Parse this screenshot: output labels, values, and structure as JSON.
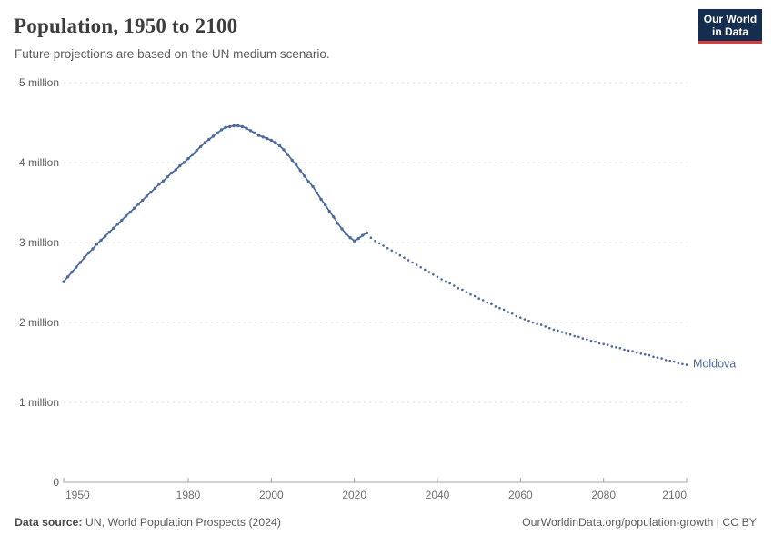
{
  "header": {
    "title": "Population, 1950 to 2100",
    "subtitle": "Future projections are based on the UN medium scenario.",
    "logo": {
      "line1": "Our World",
      "line2": "in Data"
    }
  },
  "footer": {
    "source_label": "Data source:",
    "source_text": " UN, World Population Prospects (2024)",
    "link_text": "OurWorldinData.org/population-growth | CC BY"
  },
  "colors": {
    "series_blue": "#4c6a9c",
    "grid": "#d9d9d9",
    "axis": "#a3a3a3",
    "tick_label": "#6e6e6e",
    "logo_bg": "#152d4e",
    "logo_red": "#d63f3f"
  },
  "chart_data": {
    "type": "line",
    "title": "Population, 1950 to 2100",
    "subtitle": "Future projections are based on the UN medium scenario.",
    "entity": "Moldova",
    "end_label": "Moldova",
    "value_unit": "millions of people",
    "x_range": [
      1950,
      2100
    ],
    "y_range_millions": [
      0,
      5
    ],
    "grid": "dashed-horizontal",
    "legend_position": "end-of-line-label",
    "x_ticks": [
      1950,
      1980,
      2000,
      2020,
      2040,
      2060,
      2080,
      2100
    ],
    "y_ticks": [
      {
        "value": 5,
        "label": "5 million"
      },
      {
        "value": 4,
        "label": "4 million"
      },
      {
        "value": 3,
        "label": "3 million"
      },
      {
        "value": 2,
        "label": "2 million"
      },
      {
        "value": 1,
        "label": "1 million"
      },
      {
        "value": 0,
        "label": "0"
      }
    ],
    "series": [
      {
        "name": "Moldova — historical estimates",
        "style": "solid_line_with_markers",
        "points": [
          [
            1950,
            2.51
          ],
          [
            1951,
            2.57
          ],
          [
            1952,
            2.63
          ],
          [
            1953,
            2.69
          ],
          [
            1954,
            2.75
          ],
          [
            1955,
            2.81
          ],
          [
            1956,
            2.87
          ],
          [
            1957,
            2.92
          ],
          [
            1958,
            2.98
          ],
          [
            1959,
            3.03
          ],
          [
            1960,
            3.08
          ],
          [
            1961,
            3.13
          ],
          [
            1962,
            3.18
          ],
          [
            1963,
            3.23
          ],
          [
            1964,
            3.28
          ],
          [
            1965,
            3.33
          ],
          [
            1966,
            3.38
          ],
          [
            1967,
            3.43
          ],
          [
            1968,
            3.48
          ],
          [
            1969,
            3.53
          ],
          [
            1970,
            3.58
          ],
          [
            1971,
            3.63
          ],
          [
            1972,
            3.68
          ],
          [
            1973,
            3.73
          ],
          [
            1974,
            3.77
          ],
          [
            1975,
            3.82
          ],
          [
            1976,
            3.87
          ],
          [
            1977,
            3.91
          ],
          [
            1978,
            3.96
          ],
          [
            1979,
            4.0
          ],
          [
            1980,
            4.05
          ],
          [
            1981,
            4.1
          ],
          [
            1982,
            4.15
          ],
          [
            1983,
            4.2
          ],
          [
            1984,
            4.25
          ],
          [
            1985,
            4.29
          ],
          [
            1986,
            4.33
          ],
          [
            1987,
            4.37
          ],
          [
            1988,
            4.41
          ],
          [
            1989,
            4.44
          ],
          [
            1990,
            4.45
          ],
          [
            1991,
            4.46
          ],
          [
            1992,
            4.46
          ],
          [
            1993,
            4.45
          ],
          [
            1994,
            4.43
          ],
          [
            1995,
            4.4
          ],
          [
            1996,
            4.37
          ],
          [
            1997,
            4.34
          ],
          [
            1998,
            4.32
          ],
          [
            1999,
            4.3
          ],
          [
            2000,
            4.28
          ],
          [
            2001,
            4.25
          ],
          [
            2002,
            4.21
          ],
          [
            2003,
            4.16
          ],
          [
            2004,
            4.1
          ],
          [
            2005,
            4.03
          ],
          [
            2006,
            3.97
          ],
          [
            2007,
            3.9
          ],
          [
            2008,
            3.83
          ],
          [
            2009,
            3.76
          ],
          [
            2010,
            3.7
          ],
          [
            2011,
            3.62
          ],
          [
            2012,
            3.54
          ],
          [
            2013,
            3.47
          ],
          [
            2014,
            3.39
          ],
          [
            2015,
            3.32
          ],
          [
            2016,
            3.24
          ],
          [
            2017,
            3.17
          ],
          [
            2018,
            3.11
          ],
          [
            2019,
            3.06
          ],
          [
            2020,
            3.02
          ],
          [
            2021,
            3.05
          ],
          [
            2022,
            3.09
          ],
          [
            2023,
            3.12
          ]
        ]
      },
      {
        "name": "Moldova — UN medium scenario projection",
        "style": "dotted",
        "points": [
          [
            2024,
            3.06
          ],
          [
            2025,
            3.02
          ],
          [
            2026,
            2.99
          ],
          [
            2027,
            2.96
          ],
          [
            2028,
            2.93
          ],
          [
            2029,
            2.9
          ],
          [
            2030,
            2.87
          ],
          [
            2031,
            2.84
          ],
          [
            2032,
            2.81
          ],
          [
            2033,
            2.78
          ],
          [
            2034,
            2.75
          ],
          [
            2035,
            2.72
          ],
          [
            2036,
            2.69
          ],
          [
            2037,
            2.66
          ],
          [
            2038,
            2.63
          ],
          [
            2039,
            2.6
          ],
          [
            2040,
            2.57
          ],
          [
            2041,
            2.54
          ],
          [
            2042,
            2.51
          ],
          [
            2043,
            2.49
          ],
          [
            2044,
            2.46
          ],
          [
            2045,
            2.43
          ],
          [
            2046,
            2.41
          ],
          [
            2047,
            2.38
          ],
          [
            2048,
            2.35
          ],
          [
            2049,
            2.33
          ],
          [
            2050,
            2.3
          ],
          [
            2051,
            2.28
          ],
          [
            2052,
            2.25
          ],
          [
            2053,
            2.23
          ],
          [
            2054,
            2.2
          ],
          [
            2055,
            2.18
          ],
          [
            2056,
            2.16
          ],
          [
            2057,
            2.13
          ],
          [
            2058,
            2.11
          ],
          [
            2059,
            2.08
          ],
          [
            2060,
            2.06
          ],
          [
            2061,
            2.04
          ],
          [
            2062,
            2.02
          ],
          [
            2063,
            2.0
          ],
          [
            2064,
            1.98
          ],
          [
            2065,
            1.97
          ],
          [
            2066,
            1.95
          ],
          [
            2067,
            1.93
          ],
          [
            2068,
            1.91
          ],
          [
            2069,
            1.9
          ],
          [
            2070,
            1.88
          ],
          [
            2071,
            1.86
          ],
          [
            2072,
            1.85
          ],
          [
            2073,
            1.83
          ],
          [
            2074,
            1.82
          ],
          [
            2075,
            1.8
          ],
          [
            2076,
            1.79
          ],
          [
            2077,
            1.77
          ],
          [
            2078,
            1.76
          ],
          [
            2079,
            1.74
          ],
          [
            2080,
            1.73
          ],
          [
            2081,
            1.72
          ],
          [
            2082,
            1.7
          ],
          [
            2083,
            1.69
          ],
          [
            2084,
            1.68
          ],
          [
            2085,
            1.66
          ],
          [
            2086,
            1.65
          ],
          [
            2087,
            1.64
          ],
          [
            2088,
            1.62
          ],
          [
            2089,
            1.61
          ],
          [
            2090,
            1.6
          ],
          [
            2091,
            1.59
          ],
          [
            2092,
            1.57
          ],
          [
            2093,
            1.56
          ],
          [
            2094,
            1.55
          ],
          [
            2095,
            1.53
          ],
          [
            2096,
            1.52
          ],
          [
            2097,
            1.51
          ],
          [
            2098,
            1.49
          ],
          [
            2099,
            1.48
          ],
          [
            2100,
            1.47
          ]
        ]
      }
    ]
  }
}
